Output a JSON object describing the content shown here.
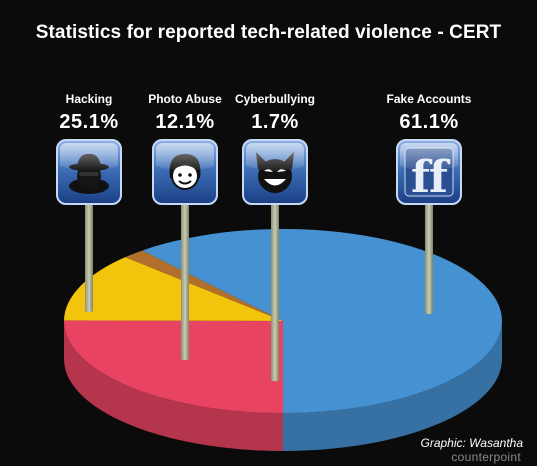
{
  "title": "Statistics for reported tech-related violence - CERT",
  "credit": "Graphic: Wasantha",
  "watermark": "counterpoint",
  "chart_data": {
    "type": "pie",
    "title": "Statistics for reported tech-related violence - CERT",
    "unit": "%",
    "slices": [
      {
        "label": "Hacking",
        "value": 25.1,
        "display": "25.1%",
        "color": "#e84461",
        "icon": "spy-icon"
      },
      {
        "label": "Photo Abuse",
        "value": 12.1,
        "display": "12.1%",
        "color": "#f2c40c",
        "icon": "girl-face-icon"
      },
      {
        "label": "Cyberbullying",
        "value": 1.7,
        "display": "1.7%",
        "color": "#b0702c",
        "icon": "masked-face-icon"
      },
      {
        "label": "Fake Accounts",
        "value": 61.1,
        "display": "61.1%",
        "color": "#4691d2",
        "icon": "facebook-ff-icon"
      }
    ]
  }
}
